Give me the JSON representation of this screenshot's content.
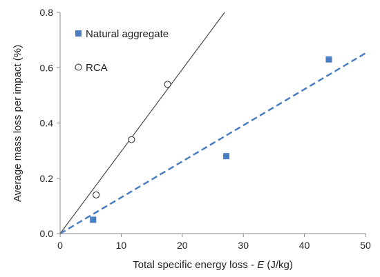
{
  "chart_data": {
    "type": "scatter",
    "x_axis": {
      "label_prefix": "Total specific energy loss - ",
      "label_symbol": "E",
      "label_unit": " (J/kg)",
      "min": 0,
      "max": 50,
      "ticks": [
        0,
        10,
        20,
        30,
        40,
        50
      ]
    },
    "y_axis": {
      "label": "Average  mass loss per impact (%)",
      "min": 0,
      "max": 0.8,
      "ticks": [
        0.0,
        0.2,
        0.4,
        0.6,
        0.8
      ],
      "tick_decimals": 1
    },
    "grid": false,
    "legend_position": "top-left",
    "series": [
      {
        "name": "Natural aggregate",
        "marker": "filled-square",
        "color": "#4a7ec2",
        "points": [
          {
            "x": 5.4,
            "y": 0.05
          },
          {
            "x": 27.2,
            "y": 0.28
          },
          {
            "x": 44.0,
            "y": 0.63
          }
        ],
        "trendline": {
          "style": "dashed",
          "color": "#4a7ec2",
          "slope": 0.01305,
          "intercept": 0
        }
      },
      {
        "name": "RCA",
        "marker": "open-circle",
        "color": "#222222",
        "points": [
          {
            "x": 5.9,
            "y": 0.14
          },
          {
            "x": 11.7,
            "y": 0.34
          },
          {
            "x": 17.6,
            "y": 0.54
          }
        ],
        "trendline": {
          "style": "solid",
          "color": "#4a4a4a",
          "slope": 0.0297,
          "intercept": 0
        }
      }
    ]
  }
}
